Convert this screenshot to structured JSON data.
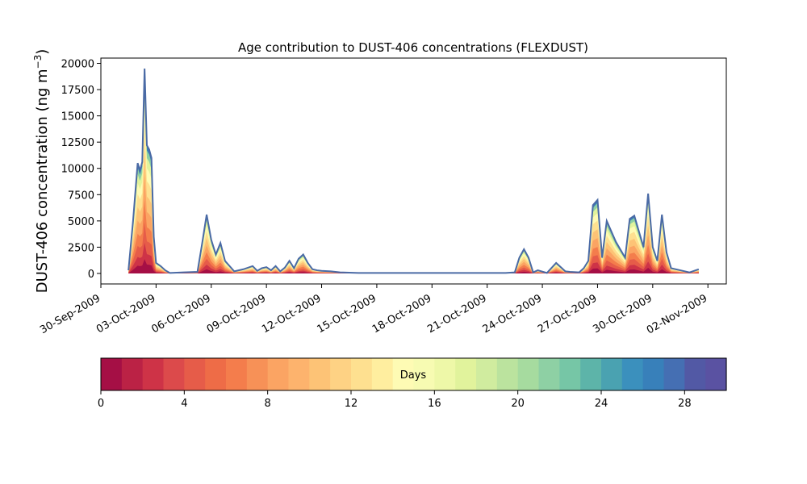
{
  "chart_data": {
    "type": "area",
    "title": "Age contribution to DUST-406 concentrations (FLEXDUST)",
    "xlabel": "",
    "ylabel_main": "DUST-406 concentration (ng m",
    "ylabel_sup": "−3",
    "ylabel_close": ")",
    "xlim": [
      "2009-09-30",
      "2009-11-03"
    ],
    "ylim": [
      -1000,
      20500
    ],
    "y_ticks": [
      0,
      2500,
      5000,
      7500,
      10000,
      12500,
      15000,
      17500,
      20000
    ],
    "y_tick_labels": [
      "0",
      "2500",
      "5000",
      "7500",
      "10000",
      "12500",
      "15000",
      "17500",
      "20000"
    ],
    "x_ticks": [
      "2009-09-30",
      "2009-10-03",
      "2009-10-06",
      "2009-10-09",
      "2009-10-12",
      "2009-10-15",
      "2009-10-18",
      "2009-10-21",
      "2009-10-24",
      "2009-10-27",
      "2009-10-30",
      "2009-11-02"
    ],
    "x_tick_labels": [
      "30-Sep-2009",
      "03-Oct-2009",
      "06-Oct-2009",
      "09-Oct-2009",
      "12-Oct-2009",
      "15-Oct-2009",
      "18-Oct-2009",
      "21-Oct-2009",
      "24-Oct-2009",
      "27-Oct-2009",
      "30-Oct-2009",
      "02-Nov-2009"
    ],
    "total_line_color": "#4a6aa5",
    "series_total": {
      "x": [
        "2009-10-01T12:00",
        "2009-10-01T18:00",
        "2009-10-02T00:00",
        "2009-10-02T03:00",
        "2009-10-02T06:00",
        "2009-10-02T09:00",
        "2009-10-02T12:00",
        "2009-10-02T15:00",
        "2009-10-02T18:00",
        "2009-10-02T21:00",
        "2009-10-03T00:00",
        "2009-10-03T06:00",
        "2009-10-03T12:00",
        "2009-10-03T18:00",
        "2009-10-04T12:00",
        "2009-10-05T06:00",
        "2009-10-05T12:00",
        "2009-10-05T18:00",
        "2009-10-06T00:00",
        "2009-10-06T06:00",
        "2009-10-06T12:00",
        "2009-10-06T18:00",
        "2009-10-07T06:00",
        "2009-10-07T18:00",
        "2009-10-08T06:00",
        "2009-10-08T12:00",
        "2009-10-08T18:00",
        "2009-10-09T00:00",
        "2009-10-09T06:00",
        "2009-10-09T12:00",
        "2009-10-09T18:00",
        "2009-10-10T00:00",
        "2009-10-10T06:00",
        "2009-10-10T12:00",
        "2009-10-10T18:00",
        "2009-10-11T00:00",
        "2009-10-11T06:00",
        "2009-10-11T12:00",
        "2009-10-11T18:00",
        "2009-10-12T00:00",
        "2009-10-12T12:00",
        "2009-10-13T00:00",
        "2009-10-14T00:00",
        "2009-10-16T00:00",
        "2009-10-18T00:00",
        "2009-10-20T00:00",
        "2009-10-21T12:00",
        "2009-10-22T00:00",
        "2009-10-22T12:00",
        "2009-10-22T18:00",
        "2009-10-23T00:00",
        "2009-10-23T06:00",
        "2009-10-23T12:00",
        "2009-10-23T18:00",
        "2009-10-24T06:00",
        "2009-10-24T18:00",
        "2009-10-25T06:00",
        "2009-10-25T12:00",
        "2009-10-26T00:00",
        "2009-10-26T06:00",
        "2009-10-26T12:00",
        "2009-10-26T18:00",
        "2009-10-27T00:00",
        "2009-10-27T06:00",
        "2009-10-27T12:00",
        "2009-10-28T00:00",
        "2009-10-28T12:00",
        "2009-10-28T18:00",
        "2009-10-29T00:00",
        "2009-10-29T06:00",
        "2009-10-29T12:00",
        "2009-10-29T18:00",
        "2009-10-30T00:00",
        "2009-10-30T06:00",
        "2009-10-30T12:00",
        "2009-10-30T18:00",
        "2009-10-31T00:00",
        "2009-10-31T12:00",
        "2009-11-01T00:00",
        "2009-11-01T12:00"
      ],
      "y": [
        300,
        5000,
        10500,
        9800,
        10600,
        19500,
        12200,
        11800,
        11000,
        3500,
        1000,
        700,
        300,
        50,
        100,
        150,
        2800,
        5600,
        3200,
        1800,
        2900,
        1200,
        200,
        400,
        700,
        250,
        500,
        600,
        300,
        700,
        200,
        550,
        1200,
        500,
        1400,
        1800,
        1000,
        400,
        300,
        250,
        200,
        100,
        50,
        50,
        50,
        50,
        50,
        50,
        100,
        1500,
        2300,
        1500,
        100,
        300,
        50,
        1000,
        200,
        150,
        100,
        500,
        1200,
        6500,
        7000,
        1500,
        5000,
        3000,
        1500,
        5200,
        5500,
        4000,
        2500,
        7600,
        2500,
        1200,
        5600,
        2000,
        500,
        300,
        100,
        400
      ]
    },
    "colorbar": {
      "label": "Days",
      "range": [
        0,
        30
      ],
      "ticks": [
        0,
        4,
        8,
        12,
        16,
        20,
        24,
        28
      ],
      "tick_labels": [
        "0",
        "4",
        "8",
        "12",
        "16",
        "20",
        "24",
        "28"
      ],
      "colors": [
        "#a50f45",
        "#bb2245",
        "#ce3347",
        "#dc4a4b",
        "#e65c49",
        "#ee6c47",
        "#f47d4c",
        "#f79157",
        "#fba463",
        "#fdb36d",
        "#fdc376",
        "#fed284",
        "#fee090",
        "#ffee9f",
        "#fefbb4",
        "#f7fbb2",
        "#eef8a8",
        "#e1f39c",
        "#d0ec9f",
        "#bbe39e",
        "#a6db9f",
        "#8ed0a4",
        "#76c6a6",
        "#5db4a9",
        "#4aa2b1",
        "#3b90bd",
        "#3880ba",
        "#456fb3",
        "#5259a5",
        "#5a52a2"
      ]
    }
  }
}
